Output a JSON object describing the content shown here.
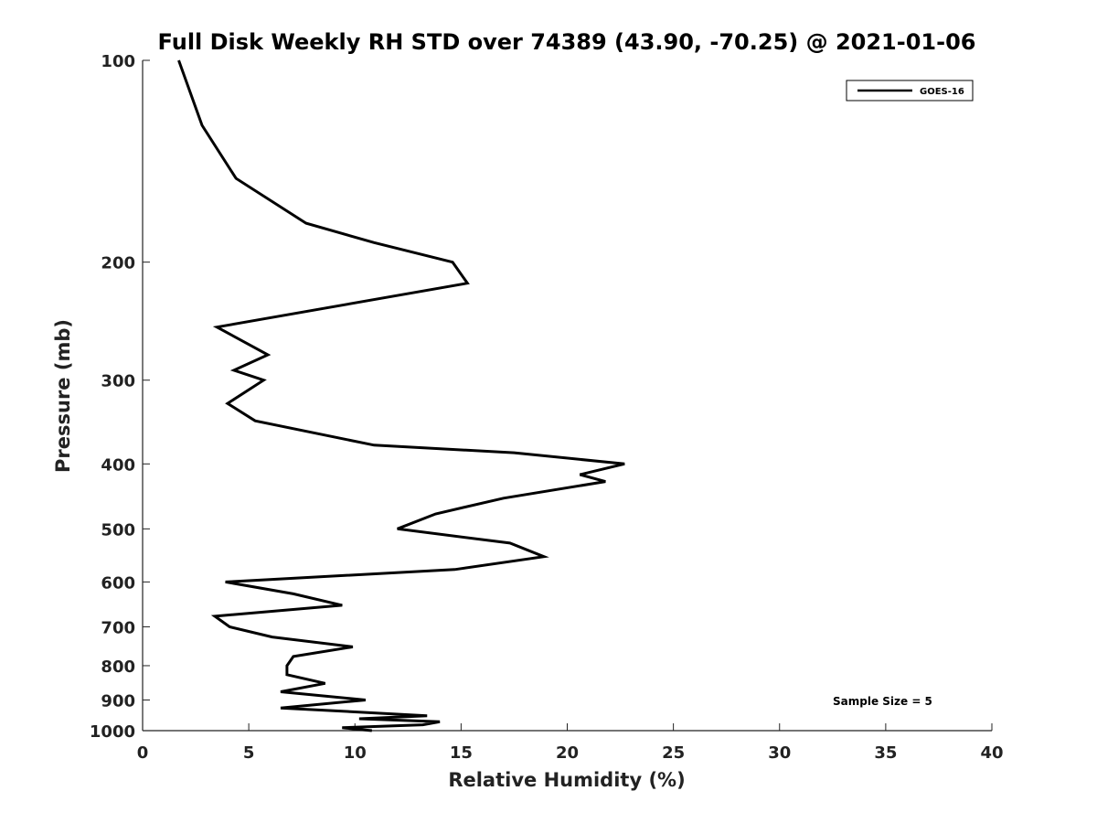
{
  "chart_data": {
    "type": "line",
    "title": "Full Disk Weekly RH STD over 74389 (43.90, -70.25) @ 2021-01-06",
    "xlabel": "Relative Humidity (%)",
    "ylabel": "Pressure (mb)",
    "xlim": [
      0,
      40
    ],
    "ylim": [
      100,
      1000
    ],
    "y_scale": "log",
    "y_reversed": true,
    "x_ticks": [
      0,
      5,
      10,
      15,
      20,
      25,
      30,
      35,
      40
    ],
    "y_ticks": [
      100,
      200,
      300,
      400,
      500,
      600,
      700,
      800,
      900,
      1000
    ],
    "grid": false,
    "legend": "top-right",
    "annotation": "Sample Size = 5",
    "series": [
      {
        "name": "GOES-16",
        "color": "#000000",
        "points": [
          [
            1.7,
            100
          ],
          [
            2.8,
            125
          ],
          [
            4.4,
            150
          ],
          [
            7.7,
            175
          ],
          [
            10.9,
            187
          ],
          [
            14.6,
            200
          ],
          [
            15.3,
            215
          ],
          [
            3.5,
            250
          ],
          [
            5.9,
            275
          ],
          [
            4.3,
            290
          ],
          [
            5.7,
            300
          ],
          [
            4.0,
            325
          ],
          [
            5.3,
            345
          ],
          [
            10.9,
            375
          ],
          [
            17.5,
            385
          ],
          [
            22.7,
            400
          ],
          [
            20.6,
            415
          ],
          [
            21.8,
            425
          ],
          [
            17.0,
            450
          ],
          [
            13.8,
            475
          ],
          [
            12.0,
            500
          ],
          [
            17.3,
            525
          ],
          [
            18.9,
            550
          ],
          [
            14.7,
            575
          ],
          [
            3.9,
            600
          ],
          [
            7.1,
            625
          ],
          [
            9.4,
            650
          ],
          [
            3.4,
            675
          ],
          [
            4.1,
            700
          ],
          [
            6.1,
            725
          ],
          [
            9.9,
            750
          ],
          [
            7.1,
            775
          ],
          [
            6.8,
            800
          ],
          [
            6.8,
            825
          ],
          [
            8.6,
            850
          ],
          [
            6.5,
            875
          ],
          [
            10.5,
            900
          ],
          [
            6.5,
            925
          ],
          [
            13.4,
            950
          ],
          [
            10.2,
            960
          ],
          [
            14.0,
            970
          ],
          [
            13.2,
            980
          ],
          [
            9.4,
            990
          ],
          [
            10.8,
            1000
          ]
        ]
      }
    ]
  }
}
